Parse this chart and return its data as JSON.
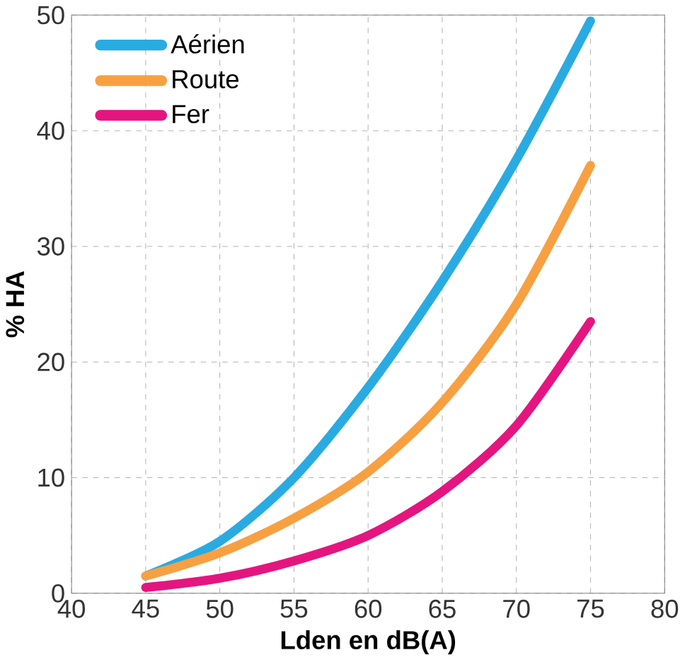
{
  "chart_data": {
    "type": "line",
    "xlabel": "Lden en dB(A)",
    "ylabel": "% HA",
    "x": [
      45,
      50,
      55,
      60,
      65,
      70,
      75
    ],
    "series": [
      {
        "name": "Aérien",
        "color": "#29abe2",
        "values": [
          1.5,
          4.5,
          10,
          17.8,
          27,
          37.5,
          49.5
        ]
      },
      {
        "name": "Route",
        "color": "#f7a042",
        "values": [
          1.5,
          3.5,
          6.5,
          10.5,
          16.5,
          25,
          37
        ]
      },
      {
        "name": "Fer",
        "color": "#e5157f",
        "values": [
          0.5,
          1.3,
          2.8,
          5,
          8.8,
          14.5,
          23.5
        ]
      }
    ],
    "xlim": [
      40,
      80
    ],
    "xticks": [
      40,
      45,
      50,
      55,
      60,
      65,
      70,
      75,
      80
    ],
    "ylim": [
      0,
      50
    ],
    "yticks": [
      0,
      10,
      20,
      30,
      40,
      50
    ],
    "grid": true,
    "legend": "top left",
    "marker": "none",
    "line_style": "solid"
  }
}
